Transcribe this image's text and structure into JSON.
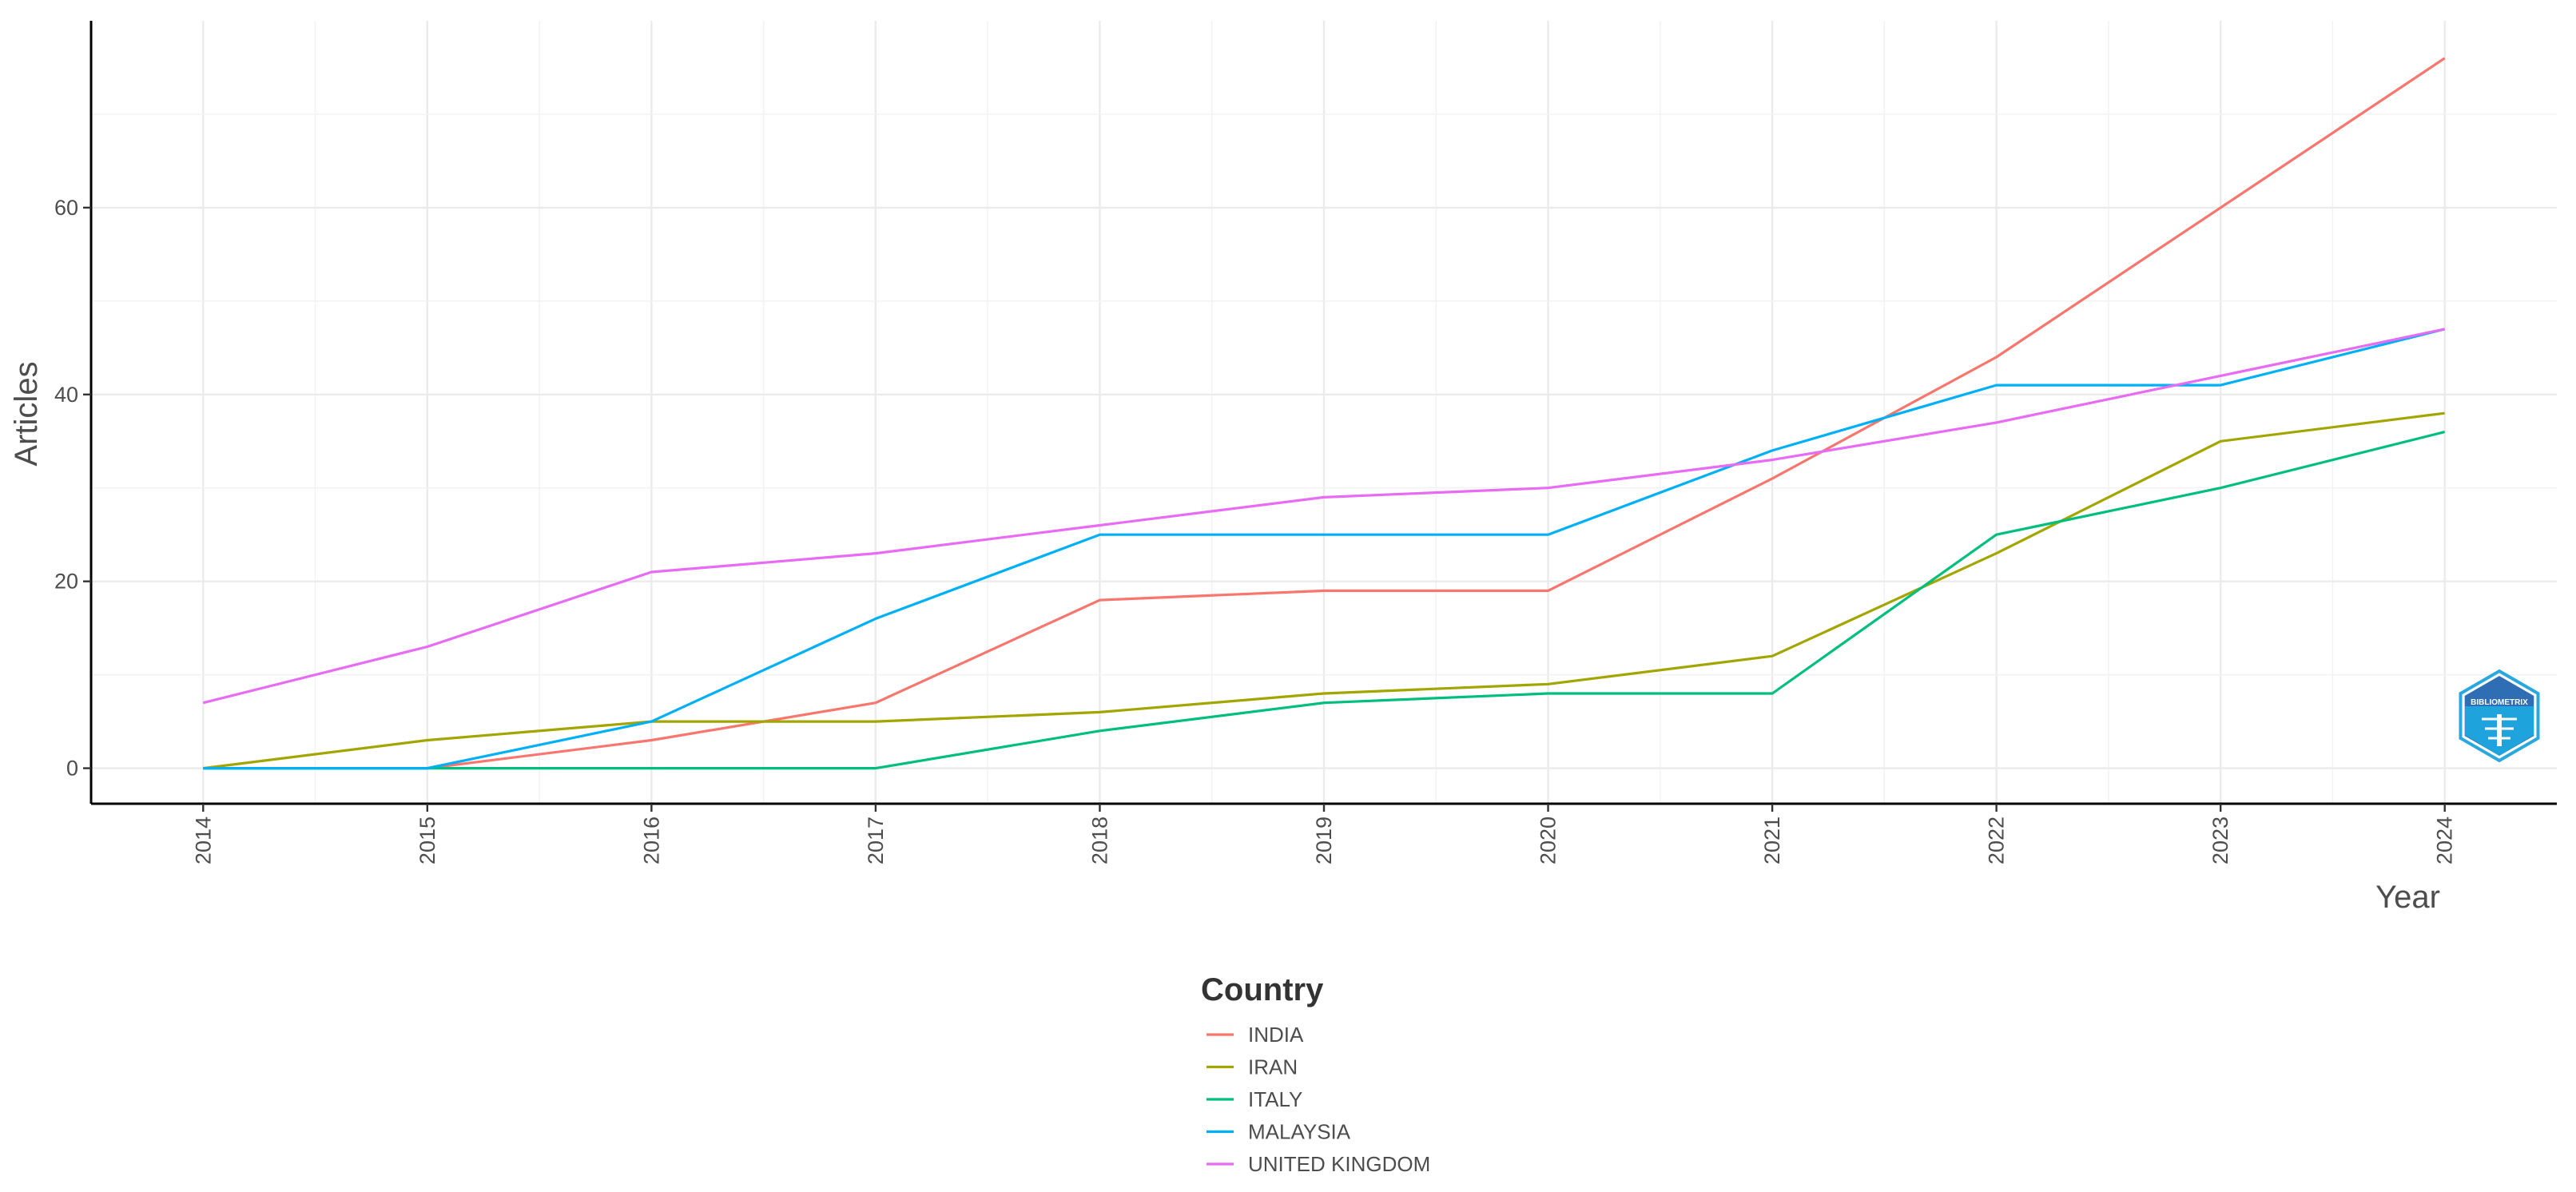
{
  "chart_data": {
    "type": "line",
    "title": "",
    "xlabel": "Year",
    "ylabel": "Articles",
    "x": [
      2014,
      2015,
      2016,
      2017,
      2018,
      2019,
      2020,
      2021,
      2022,
      2023,
      2024
    ],
    "x_tick_labels": [
      "2014",
      "2015",
      "2016",
      "2017",
      "2018",
      "2019",
      "2020",
      "2021",
      "2022",
      "2023",
      "2024"
    ],
    "y_ticks": [
      0,
      20,
      40,
      60
    ],
    "y_tick_labels": [
      "0",
      "20",
      "40",
      "60"
    ],
    "xlim": [
      2013.5,
      2024.5
    ],
    "ylim": [
      -3.8,
      80
    ],
    "grid": true,
    "legend": {
      "title": "Country",
      "placement": "bottom"
    },
    "series": [
      {
        "name": "INDIA",
        "color": "#F8766D",
        "values": [
          0,
          0,
          3,
          7,
          18,
          19,
          19,
          31,
          44,
          60,
          76
        ]
      },
      {
        "name": "IRAN",
        "color": "#A3A500",
        "values": [
          0,
          3,
          5,
          5,
          6,
          8,
          9,
          12,
          23,
          35,
          38
        ]
      },
      {
        "name": "ITALY",
        "color": "#00BF7D",
        "values": [
          0,
          0,
          0,
          0,
          4,
          7,
          8,
          8,
          25,
          30,
          36
        ]
      },
      {
        "name": "MALAYSIA",
        "color": "#00B0F6",
        "values": [
          0,
          0,
          5,
          16,
          25,
          25,
          25,
          34,
          41,
          41,
          47
        ]
      },
      {
        "name": "UNITED KINGDOM",
        "color": "#E76BF3",
        "values": [
          7,
          13,
          21,
          23,
          26,
          29,
          30,
          33,
          37,
          42,
          47
        ]
      }
    ],
    "watermark": {
      "icon": "bibliometrix-logo-icon",
      "text": "BIBLIOMETRIX"
    }
  }
}
